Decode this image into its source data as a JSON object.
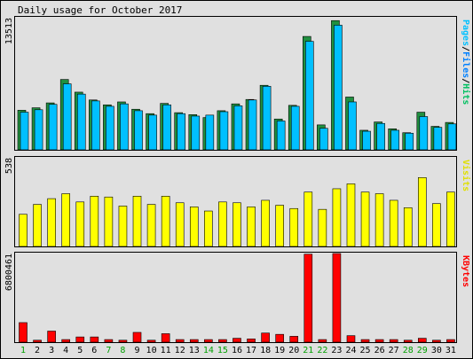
{
  "chart_data": [
    {
      "type": "bar",
      "title": "Daily usage for October 2017",
      "categories": [
        "1",
        "2",
        "3",
        "4",
        "5",
        "6",
        "7",
        "8",
        "9",
        "10",
        "11",
        "12",
        "13",
        "14",
        "15",
        "16",
        "17",
        "18",
        "19",
        "20",
        "21",
        "22",
        "23",
        "24",
        "25",
        "26",
        "27",
        "28",
        "29",
        "30",
        "31"
      ],
      "weekend_days": [
        "1",
        "7",
        "8",
        "14",
        "15",
        "21",
        "22",
        "28",
        "29"
      ],
      "ymax_label": "13513",
      "ylim": [
        0,
        13513
      ],
      "legend": [
        {
          "label": "Pages",
          "color": "#00c0ff"
        },
        {
          "label": "/",
          "color": "#000000"
        },
        {
          "label": "Files",
          "color": "#0080ff"
        },
        {
          "label": "/",
          "color": "#000000"
        },
        {
          "label": "Hits",
          "color": "#00c060"
        }
      ],
      "series": [
        {
          "name": "Hits",
          "color": "#209040",
          "values": [
            4050,
            4300,
            4800,
            7200,
            5900,
            5100,
            4600,
            4900,
            4150,
            3700,
            4750,
            3800,
            3600,
            3300,
            4000,
            4700,
            5150,
            6600,
            3150,
            4550,
            11600,
            2550,
            13220,
            5400,
            2000,
            2850,
            2150,
            1750,
            3850,
            2400,
            2800
          ]
        },
        {
          "name": "Files",
          "color": "#00c0ff",
          "values": [
            3850,
            4100,
            4650,
            6750,
            5700,
            5000,
            4450,
            4700,
            4000,
            3550,
            4600,
            3700,
            3450,
            3550,
            3900,
            4500,
            5100,
            6500,
            2950,
            4450,
            11100,
            2200,
            12750,
            4900,
            1900,
            2700,
            2000,
            1700,
            3400,
            2300,
            2650
          ]
        }
      ]
    },
    {
      "type": "bar",
      "ymax_label": "538",
      "ylim": [
        0,
        538
      ],
      "legend": [
        {
          "label": "Visits",
          "color": "#e0e000"
        }
      ],
      "series": [
        {
          "name": "Visits",
          "color": "#ffff00",
          "values": [
            195,
            255,
            290,
            320,
            270,
            305,
            300,
            245,
            305,
            255,
            305,
            265,
            240,
            215,
            270,
            265,
            240,
            280,
            250,
            230,
            330,
            225,
            350,
            380,
            330,
            320,
            280,
            235,
            418,
            260,
            330
          ]
        }
      ]
    },
    {
      "type": "bar",
      "ymax_label": "6800461",
      "ylim": [
        0,
        6800461
      ],
      "legend": [
        {
          "label": "KBytes",
          "color": "#ff0000"
        }
      ],
      "series": [
        {
          "name": "KBytes",
          "color": "#ff0000",
          "values": [
            1500000,
            150000,
            850000,
            200000,
            400000,
            400000,
            200000,
            150000,
            750000,
            150000,
            650000,
            200000,
            200000,
            200000,
            200000,
            300000,
            250000,
            700000,
            600000,
            450000,
            6750000,
            200000,
            6800461,
            500000,
            200000,
            200000,
            200000,
            150000,
            300000,
            150000,
            200000
          ]
        }
      ]
    }
  ]
}
